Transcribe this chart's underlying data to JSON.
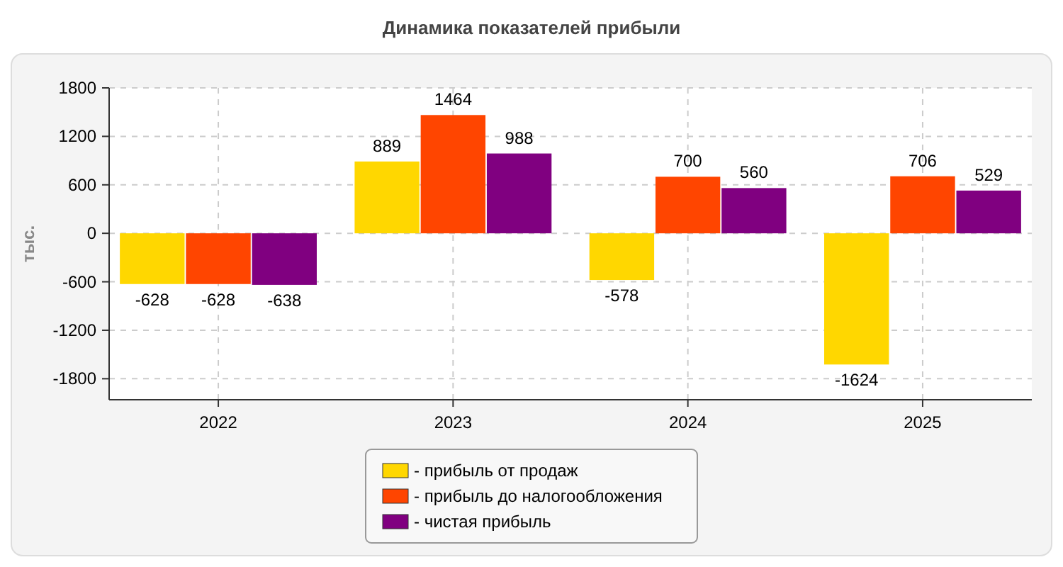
{
  "chart_data": {
    "type": "bar",
    "title": "Динамика показателей прибыли",
    "ylabel": "тыс.",
    "categories": [
      "2022",
      "2023",
      "2024",
      "2025"
    ],
    "series": [
      {
        "name": "- прибыль от продаж",
        "color": "#ffd700",
        "values": [
          -628,
          889,
          -578,
          -1624
        ]
      },
      {
        "name": "- прибыль до налогообложения",
        "color": "#ff4500",
        "values": [
          -628,
          1464,
          700,
          706
        ]
      },
      {
        "name": "- чистая прибыль",
        "color": "#800080",
        "values": [
          -638,
          988,
          560,
          529
        ]
      }
    ],
    "ylim": [
      -2060,
      1800
    ],
    "yticks": [
      -1800,
      -1200,
      -600,
      0,
      600,
      1200,
      1800
    ],
    "grid": true,
    "legend": "bottom",
    "data_labels": true
  }
}
